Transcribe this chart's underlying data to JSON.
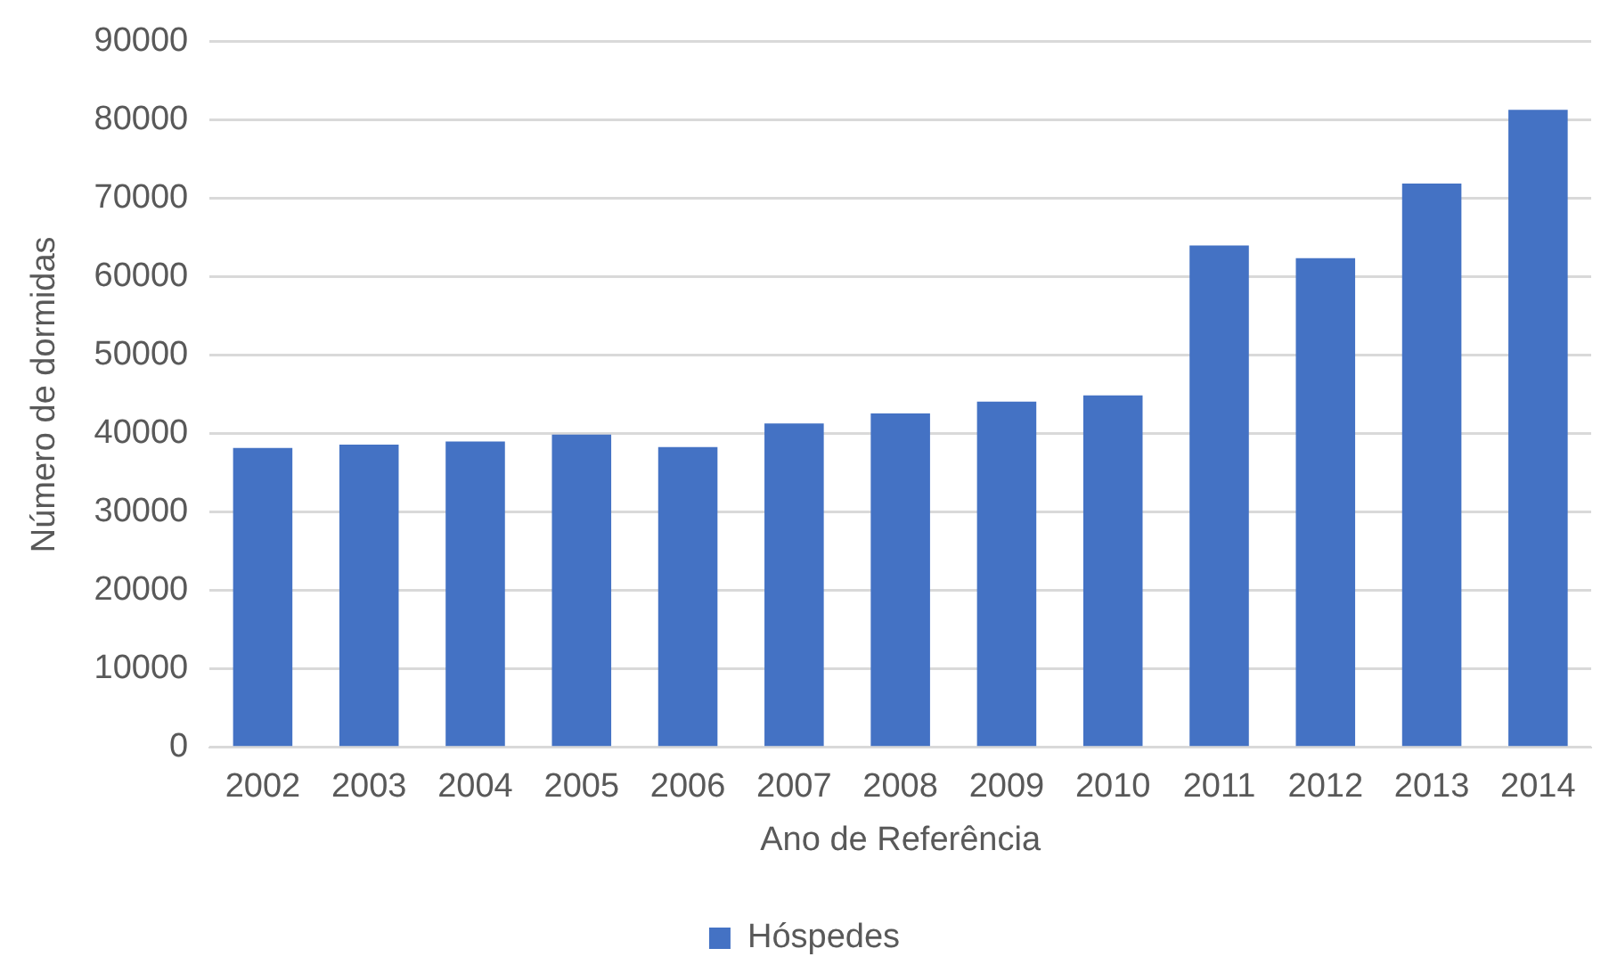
{
  "chart_data": {
    "type": "bar",
    "xlabel": "Ano de Referência",
    "ylabel": "Número de dormidas",
    "categories": [
      "2002",
      "2003",
      "2004",
      "2005",
      "2006",
      "2007",
      "2008",
      "2009",
      "2010",
      "2011",
      "2012",
      "2013",
      "2014"
    ],
    "series": [
      {
        "name": "Hóspedes",
        "color": "#4472c4",
        "values": [
          38200,
          38600,
          39000,
          39900,
          38300,
          41300,
          42600,
          44100,
          44900,
          64000,
          62400,
          71900,
          81300
        ]
      }
    ],
    "ylim": [
      0,
      90000
    ],
    "yticks": [
      0,
      10000,
      20000,
      30000,
      40000,
      50000,
      60000,
      70000,
      80000,
      90000
    ],
    "grid": "y",
    "legend": "bottom"
  }
}
